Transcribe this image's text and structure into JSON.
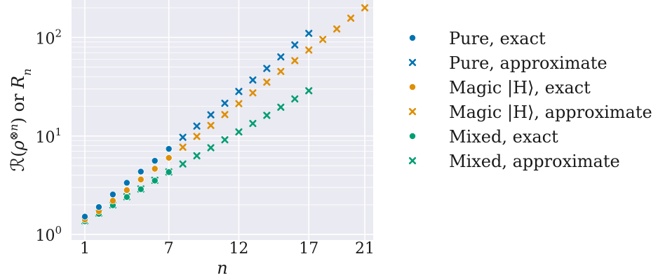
{
  "chart_data": {
    "type": "scatter",
    "title": "",
    "xlabel": "n",
    "ylabel": "R(ρ^⊗n) or R_n",
    "x_ticks": [
      1,
      7,
      12,
      17,
      21
    ],
    "xlim": [
      0.05,
      21.6
    ],
    "ylim": [
      0.88,
      240
    ],
    "y_scale": "log",
    "y_ticks": [
      {
        "value": 1,
        "base": "10",
        "exp": "0"
      },
      {
        "value": 10,
        "base": "10",
        "exp": "1"
      },
      {
        "value": 100,
        "base": "10",
        "exp": "2"
      }
    ],
    "grid": true,
    "legend_position": "right",
    "series": [
      {
        "name": "Pure, exact",
        "marker": "circle",
        "color": "#0173b2",
        "x": [
          1,
          2,
          3,
          4,
          5,
          6,
          7
        ],
        "y": [
          1.52,
          1.9,
          2.55,
          3.35,
          4.35,
          5.6,
          7.4
        ]
      },
      {
        "name": "Pure, approximate",
        "marker": "x",
        "color": "#0173b2",
        "x": [
          8,
          9,
          10,
          11,
          12,
          13,
          14,
          15,
          16,
          17
        ],
        "y": [
          9.7,
          12.6,
          16.4,
          21.5,
          28.3,
          37.0,
          48.5,
          63.5,
          84.0,
          110.0
        ]
      },
      {
        "name": "Magic |H⟩, exact",
        "marker": "circle",
        "color": "#de8f05",
        "x": [
          1,
          2,
          3,
          4,
          5,
          6,
          7
        ],
        "y": [
          1.42,
          1.72,
          2.2,
          2.82,
          3.62,
          4.65,
          6.0
        ]
      },
      {
        "name": "Magic |H⟩, approximate",
        "marker": "x",
        "color": "#de8f05",
        "x": [
          8,
          9,
          10,
          11,
          12,
          13,
          14,
          15,
          16,
          17,
          18,
          19,
          20,
          21
        ],
        "y": [
          7.7,
          9.9,
          12.8,
          16.5,
          21.3,
          27.4,
          35.2,
          45.2,
          58.2,
          74.5,
          95.5,
          122.0,
          157.0,
          200.0
        ]
      },
      {
        "name": "Mixed, exact",
        "marker": "circle",
        "color": "#029e73",
        "x": [
          1,
          2,
          3,
          4,
          5,
          6,
          7
        ],
        "y": [
          1.36,
          1.62,
          1.98,
          2.4,
          2.88,
          3.52,
          4.3
        ]
      },
      {
        "name": "Mixed, approximate",
        "marker": "x",
        "color": "#029e73",
        "x": [
          1,
          2,
          3,
          4,
          5,
          6,
          7,
          8,
          9,
          10,
          11,
          12,
          13,
          14,
          15,
          16,
          17
        ],
        "y": [
          1.38,
          1.65,
          2.0,
          2.42,
          2.9,
          3.55,
          4.32,
          5.2,
          6.3,
          7.6,
          9.15,
          11.0,
          13.4,
          16.2,
          19.6,
          23.8,
          28.8
        ]
      }
    ]
  }
}
